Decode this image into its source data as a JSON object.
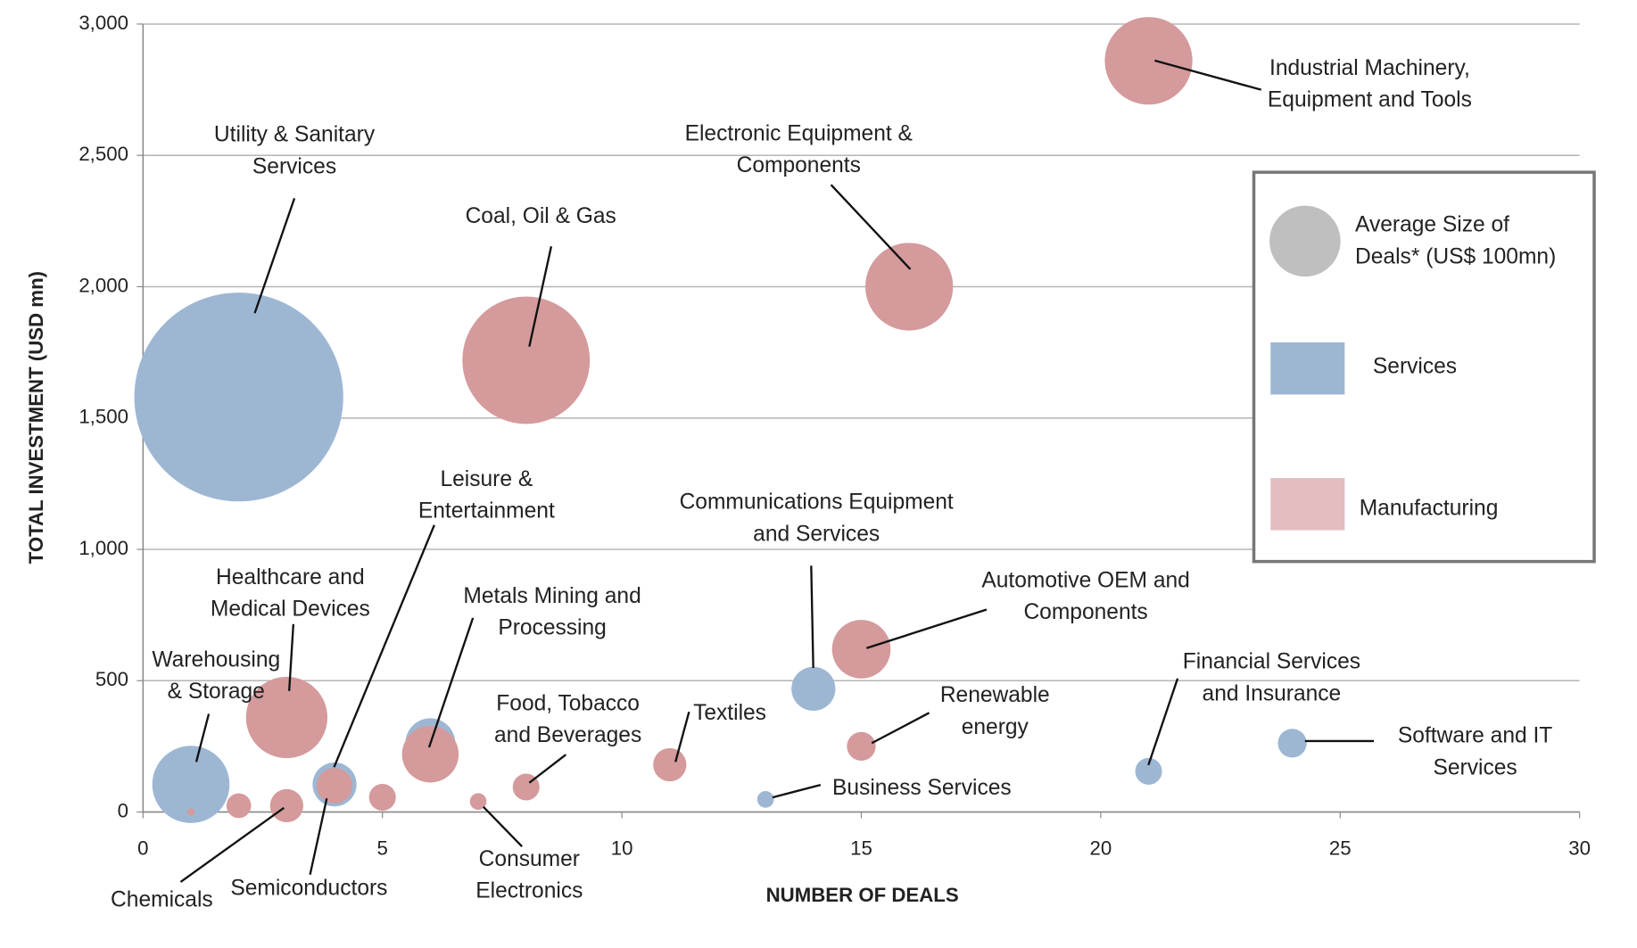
{
  "chart_data": {
    "type": "bubble",
    "xlabel": "NUMBER OF DEALS",
    "ylabel": "TOTAL INVESTMENT (USD mn)",
    "size_label": [
      "Average Size of",
      "Deals* (US$ 100mn)"
    ],
    "xlim": [
      0,
      30
    ],
    "xticks": [
      0,
      5,
      10,
      15,
      20,
      25,
      30
    ],
    "ylim": [
      0,
      3000
    ],
    "yticks": [
      0,
      500,
      {
        "value": 1000,
        "label": "1,000"
      },
      {
        "value": 1500,
        "label": "1,500"
      },
      {
        "value": 2000,
        "label": "2,000"
      },
      {
        "value": 2500,
        "label": "2,500"
      },
      {
        "value": 3000,
        "label": "3,000"
      }
    ],
    "grid": true,
    "legend": "right",
    "series": [
      {
        "name": "Services",
        "color": "#9db7d3",
        "x": [
          2,
          1,
          4,
          6,
          14,
          13,
          21,
          24
        ],
        "values": [
          1580,
          105,
          105,
          262,
          469,
          48,
          155,
          262
        ],
        "sizes": [
          7.9,
          1.08,
          0.35,
          0.45,
          0.35,
          0.05,
          0.13,
          0.15
        ],
        "labels": [
          [
            "Utility  & Sanitary",
            "Services"
          ],
          [
            "Warehousing",
            "& Storage"
          ],
          [
            "Leisure &",
            "Entertainment"
          ],
          null,
          [
            "Communications Equipment",
            "and Services"
          ],
          [
            "Business Services"
          ],
          [
            "Financial Services",
            "and Insurance"
          ],
          [
            "Software and IT",
            "Services"
          ]
        ]
      },
      {
        "name": "Manufacturing",
        "color": "#d49a9c",
        "x": [
          21,
          16,
          8,
          3,
          6,
          15,
          15,
          11,
          8,
          7,
          3,
          4,
          2,
          5,
          1
        ],
        "values": [
          2860,
          2000,
          1720,
          360,
          220,
          620,
          250,
          180,
          95,
          40,
          24,
          100,
          24,
          56,
          0
        ],
        "sizes": [
          1.39,
          1.39,
          2.94,
          1.2,
          0.58,
          0.62,
          0.15,
          0.2,
          0.13,
          0.05,
          0.2,
          0.23,
          0.11,
          0.13,
          0.01
        ],
        "labels": [
          [
            "Industrial Machinery,",
            "Equipment and Tools"
          ],
          [
            "Electronic Equipment  &",
            "Components"
          ],
          [
            "Coal, Oil & Gas"
          ],
          [
            "Healthcare and",
            "Medical Devices"
          ],
          [
            "Metals Mining and",
            "Processing"
          ],
          [
            "Automotive OEM and",
            "Components"
          ],
          [
            "Renewable",
            "energy"
          ],
          [
            "Textiles"
          ],
          [
            "Food, Tobacco",
            "and Beverages"
          ],
          [
            "Consumer",
            "Electronics"
          ],
          [
            "Chemicals"
          ],
          [
            "Semiconductors"
          ],
          null,
          null,
          null
        ]
      }
    ]
  }
}
